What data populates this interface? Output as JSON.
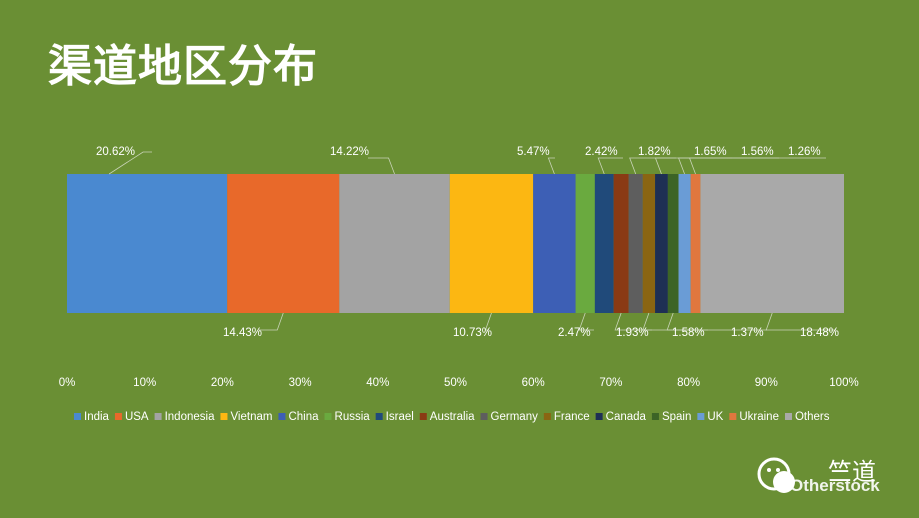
{
  "title": "渠道地区分布",
  "brand": {
    "name": "竺道",
    "sub": "Otherstock"
  },
  "chart_data": {
    "type": "bar",
    "orientation": "horizontal-stacked-100",
    "categories": [
      "India",
      "USA",
      "Indonesia",
      "Vietnam",
      "China",
      "Russia",
      "Israel",
      "Australia",
      "Germany",
      "France",
      "Canada",
      "Spain",
      "UK",
      "Ukraine",
      "Others"
    ],
    "values": [
      20.62,
      14.43,
      14.22,
      10.73,
      5.47,
      2.47,
      2.42,
      1.93,
      1.82,
      1.58,
      1.65,
      1.37,
      1.56,
      1.26,
      18.48
    ],
    "labels": [
      "20.62%",
      "14.43%",
      "14.22%",
      "10.73%",
      "5.47%",
      "2.47%",
      "2.42%",
      "1.93%",
      "1.82%",
      "1.58%",
      "1.65%",
      "1.37%",
      "1.56%",
      "1.26%",
      "18.48%"
    ],
    "colors": [
      "#4a89d0",
      "#e8692a",
      "#a3a3a3",
      "#fcb712",
      "#3d5fb5",
      "#6aaa3f",
      "#204a7a",
      "#8a3a14",
      "#5e5e5e",
      "#8a6512",
      "#1e2f54",
      "#3c6426",
      "#6a9cd6",
      "#e0773e",
      "#a9a9a9"
    ],
    "xlim": [
      0,
      100
    ],
    "xticks": [
      "0%",
      "10%",
      "20%",
      "30%",
      "40%",
      "50%",
      "60%",
      "70%",
      "80%",
      "90%",
      "100%"
    ],
    "legend_position": "bottom",
    "grid": false
  }
}
